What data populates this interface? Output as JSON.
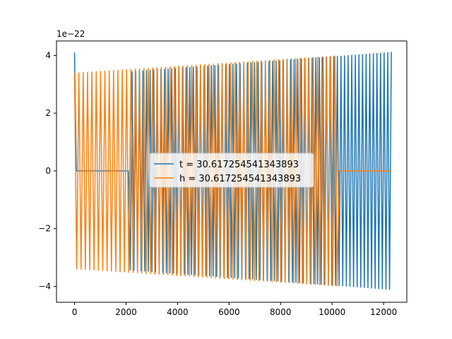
{
  "chart_data": {
    "type": "line",
    "title": "",
    "xlabel": "",
    "ylabel": "",
    "y_offset_label": "1e−22",
    "xlim": [
      -700,
      12900
    ],
    "ylim": [
      -4.55,
      4.5
    ],
    "xticks": [
      0,
      2000,
      4000,
      6000,
      8000,
      10000,
      12000
    ],
    "xtick_labels": [
      "0",
      "2000",
      "4000",
      "6000",
      "8000",
      "10000",
      "12000"
    ],
    "yticks": [
      -4,
      -2,
      0,
      2,
      4
    ],
    "ytick_labels": [
      "−4",
      "−2",
      "0",
      "2",
      "4"
    ],
    "grid": false,
    "legend_position": "center",
    "series": [
      {
        "name": "t = 30.617254541343893",
        "color": "#1f77b4",
        "start_x": 0,
        "active_from_x": 2150,
        "end_x": 12300,
        "amp_start": 3.3,
        "amp_end": 4.12,
        "half_periods": 176,
        "initial_spike": 4.1
      },
      {
        "name": "h = 30.617254541343893",
        "color": "#ff7f0e",
        "start_x": 0,
        "active_until_x": 10200,
        "end_x": 12300,
        "amp_start": 3.4,
        "amp_end": 4.12,
        "half_periods": 146
      }
    ]
  }
}
